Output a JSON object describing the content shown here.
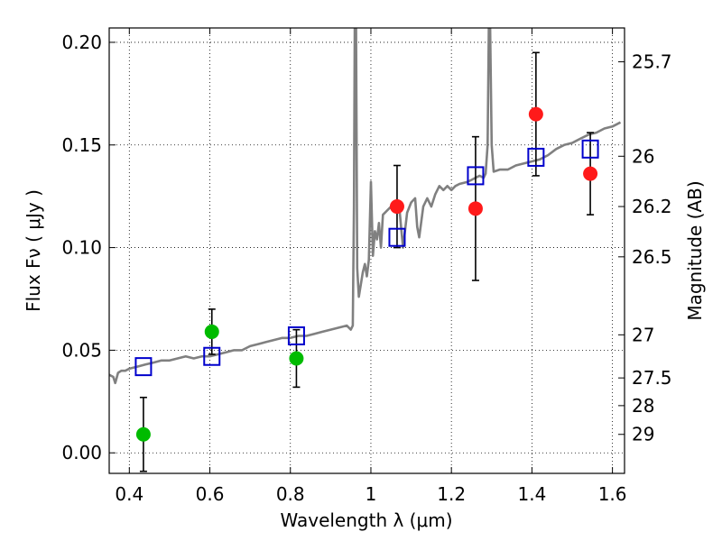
{
  "chart_data": {
    "type": "scatter",
    "xlabel": "Wavelength  λ (μm)",
    "ylabel": "Flux  Fν  ( μJy )",
    "ylabel_right": "Magnitude (AB)",
    "xlim": [
      0.35,
      1.63
    ],
    "ylim": [
      -0.01,
      0.207
    ],
    "grid": true,
    "x_ticks": [
      0.4,
      0.6,
      0.8,
      1.0,
      1.2,
      1.4,
      1.6
    ],
    "x_tick_labels": [
      "0.4",
      "0.6",
      "0.8",
      "1",
      "1.2",
      "1.4",
      "1.6"
    ],
    "y_ticks": [
      0.0,
      0.05,
      0.1,
      0.15,
      0.2
    ],
    "y_tick_labels": [
      "0.00",
      "0.05",
      "0.10",
      "0.15",
      "0.20"
    ],
    "right_ticks": [
      {
        "flux": 0.1905,
        "label": "25.7"
      },
      {
        "flux": 0.1445,
        "label": "26"
      },
      {
        "flux": 0.12,
        "label": "26.2"
      },
      {
        "flux": 0.0955,
        "label": "26.5"
      },
      {
        "flux": 0.0575,
        "label": "27"
      },
      {
        "flux": 0.0365,
        "label": "27.5"
      },
      {
        "flux": 0.023,
        "label": "28"
      },
      {
        "flux": 0.009,
        "label": "29"
      }
    ],
    "model_sed": {
      "color": "#808080",
      "points": [
        [
          0.35,
          0.038
        ],
        [
          0.36,
          0.037
        ],
        [
          0.365,
          0.034
        ],
        [
          0.372,
          0.039
        ],
        [
          0.38,
          0.04
        ],
        [
          0.39,
          0.04
        ],
        [
          0.4,
          0.041
        ],
        [
          0.42,
          0.042
        ],
        [
          0.44,
          0.043
        ],
        [
          0.46,
          0.044
        ],
        [
          0.48,
          0.045
        ],
        [
          0.5,
          0.045
        ],
        [
          0.52,
          0.046
        ],
        [
          0.54,
          0.047
        ],
        [
          0.56,
          0.046
        ],
        [
          0.58,
          0.047
        ],
        [
          0.6,
          0.047
        ],
        [
          0.62,
          0.048
        ],
        [
          0.64,
          0.049
        ],
        [
          0.66,
          0.05
        ],
        [
          0.68,
          0.05
        ],
        [
          0.7,
          0.052
        ],
        [
          0.72,
          0.053
        ],
        [
          0.74,
          0.054
        ],
        [
          0.76,
          0.055
        ],
        [
          0.78,
          0.056
        ],
        [
          0.8,
          0.056
        ],
        [
          0.82,
          0.057
        ],
        [
          0.84,
          0.057
        ],
        [
          0.86,
          0.058
        ],
        [
          0.88,
          0.059
        ],
        [
          0.9,
          0.06
        ],
        [
          0.92,
          0.061
        ],
        [
          0.94,
          0.062
        ],
        [
          0.95,
          0.06
        ],
        [
          0.955,
          0.062
        ],
        [
          0.958,
          0.12
        ],
        [
          0.96,
          0.21
        ],
        [
          0.963,
          0.21
        ],
        [
          0.966,
          0.09
        ],
        [
          0.97,
          0.076
        ],
        [
          0.975,
          0.082
        ],
        [
          0.98,
          0.088
        ],
        [
          0.985,
          0.092
        ],
        [
          0.99,
          0.086
        ],
        [
          0.995,
          0.094
        ],
        [
          1.0,
          0.132
        ],
        [
          1.005,
          0.096
        ],
        [
          1.01,
          0.108
        ],
        [
          1.015,
          0.104
        ],
        [
          1.02,
          0.112
        ],
        [
          1.025,
          0.1
        ],
        [
          1.03,
          0.116
        ],
        [
          1.04,
          0.118
        ],
        [
          1.05,
          0.12
        ],
        [
          1.06,
          0.122
        ],
        [
          1.07,
          0.121
        ],
        [
          1.075,
          0.11
        ],
        [
          1.08,
          0.1
        ],
        [
          1.09,
          0.117
        ],
        [
          1.1,
          0.122
        ],
        [
          1.11,
          0.124
        ],
        [
          1.115,
          0.11
        ],
        [
          1.12,
          0.105
        ],
        [
          1.13,
          0.12
        ],
        [
          1.14,
          0.124
        ],
        [
          1.15,
          0.12
        ],
        [
          1.16,
          0.126
        ],
        [
          1.17,
          0.13
        ],
        [
          1.18,
          0.128
        ],
        [
          1.19,
          0.13
        ],
        [
          1.2,
          0.128
        ],
        [
          1.21,
          0.13
        ],
        [
          1.22,
          0.131
        ],
        [
          1.24,
          0.132
        ],
        [
          1.25,
          0.133
        ],
        [
          1.26,
          0.134
        ],
        [
          1.27,
          0.135
        ],
        [
          1.28,
          0.134
        ],
        [
          1.285,
          0.136
        ],
        [
          1.29,
          0.15
        ],
        [
          1.293,
          0.21
        ],
        [
          1.296,
          0.21
        ],
        [
          1.3,
          0.15
        ],
        [
          1.305,
          0.137
        ],
        [
          1.32,
          0.138
        ],
        [
          1.34,
          0.138
        ],
        [
          1.36,
          0.14
        ],
        [
          1.38,
          0.141
        ],
        [
          1.4,
          0.142
        ],
        [
          1.42,
          0.143
        ],
        [
          1.44,
          0.145
        ],
        [
          1.46,
          0.148
        ],
        [
          1.48,
          0.15
        ],
        [
          1.5,
          0.151
        ],
        [
          1.52,
          0.153
        ],
        [
          1.54,
          0.155
        ],
        [
          1.56,
          0.156
        ],
        [
          1.58,
          0.158
        ],
        [
          1.6,
          0.159
        ],
        [
          1.62,
          0.161
        ]
      ]
    },
    "series": [
      {
        "marker": "circle",
        "color": "#00bb00",
        "points": [
          {
            "x": 0.435,
            "y": 0.009,
            "yerr": 0.018
          },
          {
            "x": 0.605,
            "y": 0.059,
            "yerr": 0.011
          },
          {
            "x": 0.815,
            "y": 0.046,
            "yerr": 0.014
          }
        ]
      },
      {
        "marker": "circle",
        "color": "#ff1a1a",
        "points": [
          {
            "x": 1.065,
            "y": 0.12,
            "yerr": 0.02
          },
          {
            "x": 1.26,
            "y": 0.119,
            "yerr": 0.035
          },
          {
            "x": 1.41,
            "y": 0.165,
            "yerr": 0.03
          },
          {
            "x": 1.545,
            "y": 0.136,
            "yerr": 0.02
          }
        ]
      },
      {
        "marker": "square",
        "color": "#0000cc",
        "points": [
          {
            "x": 0.435,
            "y": 0.042
          },
          {
            "x": 0.605,
            "y": 0.047
          },
          {
            "x": 0.815,
            "y": 0.057
          },
          {
            "x": 1.065,
            "y": 0.105
          },
          {
            "x": 1.26,
            "y": 0.135
          },
          {
            "x": 1.41,
            "y": 0.144
          },
          {
            "x": 1.545,
            "y": 0.148
          }
        ]
      }
    ]
  }
}
